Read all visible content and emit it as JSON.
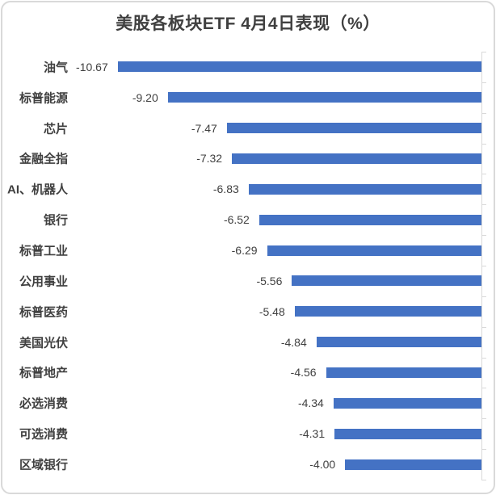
{
  "chart": {
    "title": "美股各板块ETF 4月4日表现（%）"
  },
  "chart_data": {
    "type": "bar",
    "orientation": "horizontal",
    "title": "美股各板块ETF 4月4日表现（%）",
    "categories": [
      "油气",
      "标普能源",
      "芯片",
      "金融全指",
      "AI、机器人",
      "银行",
      "标普工业",
      "公用事业",
      "标普医药",
      "美国光伏",
      "标普地产",
      "必选消费",
      "可选消费",
      "区域银行"
    ],
    "values": [
      -10.67,
      -9.2,
      -7.47,
      -7.32,
      -6.83,
      -6.52,
      -6.29,
      -5.56,
      -5.48,
      -4.84,
      -4.56,
      -4.34,
      -4.31,
      -4.0
    ],
    "value_labels": [
      "-10.67",
      "-9.20",
      "-7.47",
      "-7.32",
      "-6.83",
      "-6.52",
      "-6.29",
      "-5.56",
      "-5.48",
      "-4.84",
      "-4.56",
      "-4.34",
      "-4.31",
      "-4.00"
    ],
    "value_label_position": "outside-end",
    "xlim": [
      -12,
      0
    ],
    "value_axis_zero_side": "right",
    "gridlines": false,
    "tick_marks": true,
    "legend": "none",
    "colors": {
      "bar": "#4472C4",
      "axis_line": "#D9D9D9",
      "tick": "#D9D9D9",
      "frame_border": "#D9D9D9",
      "title_text": "#404040",
      "category_text": "#404040",
      "value_text": "#404040",
      "background": "#FFFFFF"
    }
  }
}
